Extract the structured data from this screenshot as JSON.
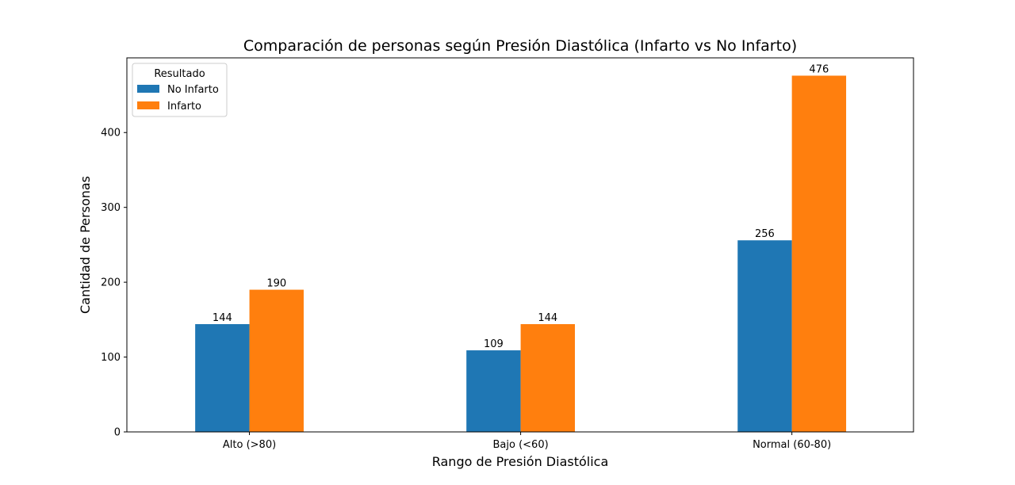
{
  "chart_data": {
    "type": "bar",
    "title": "Comparación de personas según Presión Diastólica (Infarto vs No Infarto)",
    "xlabel": "Rango de Presión Diastólica",
    "ylabel": "Cantidad de Personas",
    "categories": [
      "Alto (>80)",
      "Bajo (<60)",
      "Normal (60-80)"
    ],
    "series": [
      {
        "name": "No Infarto",
        "values": [
          144,
          109,
          256
        ],
        "color": "#1f77b4"
      },
      {
        "name": "Infarto",
        "values": [
          190,
          144,
          476
        ],
        "color": "#ff7f0e"
      }
    ],
    "ylim": [
      0,
      499.8
    ],
    "yticks": [
      0,
      100,
      200,
      300,
      400
    ],
    "grid": false,
    "legend": {
      "title": "Resultado",
      "placement": "top-left"
    }
  }
}
